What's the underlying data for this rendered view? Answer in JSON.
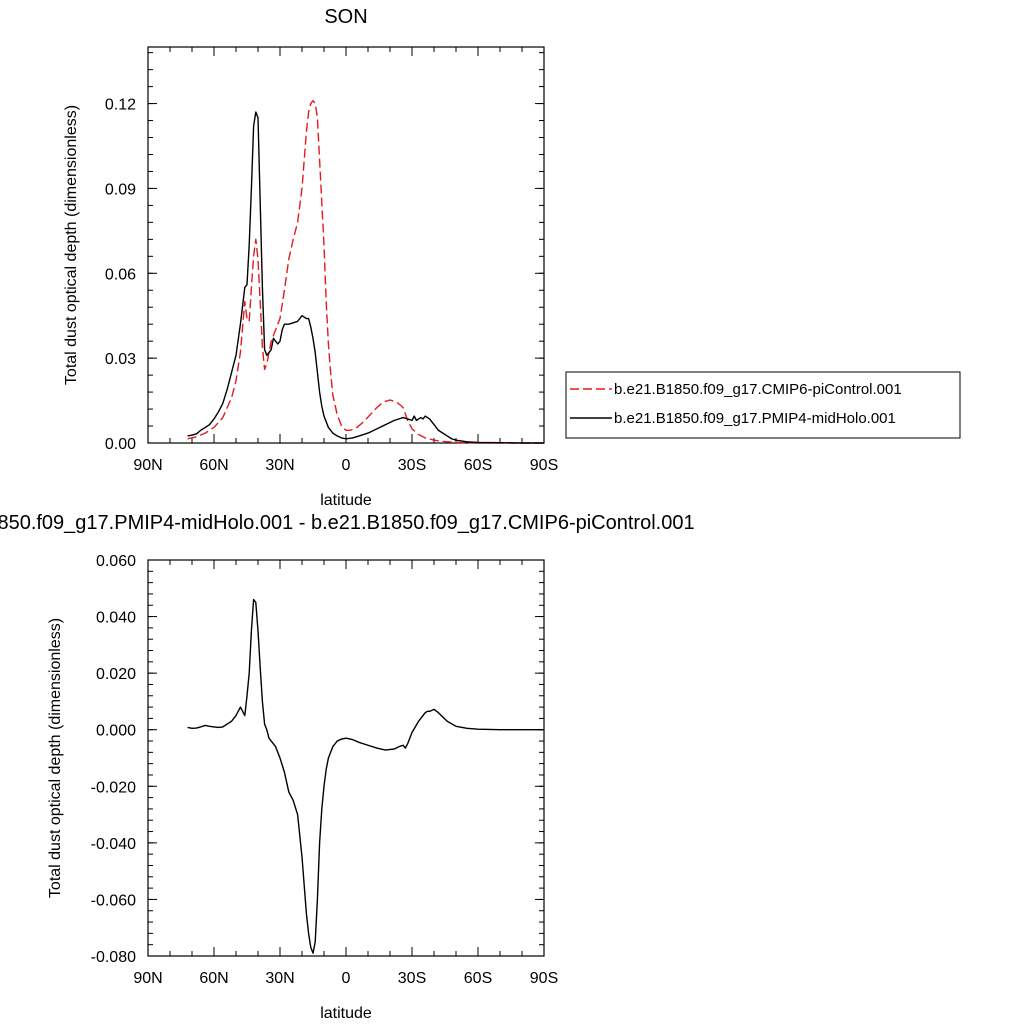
{
  "chart_data": [
    {
      "type": "line",
      "title": "SON",
      "xlabel": "latitude",
      "ylabel": "Total dust optical depth (dimensionless)",
      "xlim": [
        90,
        -90
      ],
      "ylim": [
        0,
        0.14
      ],
      "xticks": [
        90,
        60,
        30,
        0,
        -30,
        -60,
        -90
      ],
      "xtick_labels": [
        "90N",
        "60N",
        "30N",
        "0",
        "30S",
        "60S",
        "90S"
      ],
      "yticks": [
        0.0,
        0.03,
        0.06,
        0.09,
        0.12
      ],
      "ytick_labels": [
        "0.00",
        "0.03",
        "0.06",
        "0.09",
        "0.12"
      ],
      "legend_position": "right",
      "series": [
        {
          "name": "b.e21.B1850.f09_g17.CMIP6-piControl.001",
          "color": "#e41a1c",
          "style": "dashed",
          "x": [
            72,
            68,
            64,
            60,
            56,
            52,
            50,
            48,
            46,
            45,
            44,
            43,
            42,
            41,
            40,
            39,
            38,
            37,
            36,
            35,
            34,
            33,
            32,
            30,
            28,
            26,
            24,
            22,
            20,
            19,
            18,
            17,
            16,
            15,
            14,
            13,
            12,
            11,
            10,
            9,
            8,
            7,
            6,
            4,
            2,
            0,
            -2,
            -5,
            -8,
            -11,
            -14,
            -17,
            -20,
            -23,
            -26,
            -28,
            -30,
            -33,
            -36,
            -40,
            -45,
            -50,
            -55,
            -60,
            -70,
            -80,
            -90
          ],
          "y": [
            0.0015,
            0.0022,
            0.0035,
            0.0055,
            0.009,
            0.016,
            0.022,
            0.032,
            0.05,
            0.044,
            0.043,
            0.055,
            0.066,
            0.072,
            0.065,
            0.05,
            0.034,
            0.026,
            0.028,
            0.032,
            0.036,
            0.038,
            0.04,
            0.044,
            0.054,
            0.065,
            0.072,
            0.078,
            0.09,
            0.1,
            0.11,
            0.117,
            0.12,
            0.121,
            0.12,
            0.115,
            0.1,
            0.085,
            0.07,
            0.05,
            0.035,
            0.025,
            0.017,
            0.01,
            0.006,
            0.0045,
            0.0045,
            0.0055,
            0.0075,
            0.01,
            0.0125,
            0.0145,
            0.0152,
            0.0145,
            0.0125,
            0.008,
            0.005,
            0.003,
            0.0018,
            0.001,
            0.0005,
            0.0002,
            0.0001,
            0.0,
            0.0,
            0.0,
            0.0
          ]
        },
        {
          "name": "b.e21.B1850.f09_g17.PMIP4-midHolo.001",
          "color": "#000000",
          "style": "solid",
          "x": [
            72,
            70,
            68,
            66,
            64,
            62,
            60,
            58,
            56,
            54,
            52,
            50,
            48,
            46,
            45,
            44,
            43,
            42,
            41,
            40,
            39,
            38,
            37,
            36,
            35,
            34,
            33,
            32,
            31,
            30,
            29,
            28,
            26,
            24,
            22,
            20,
            18,
            17,
            16,
            15,
            14,
            13,
            12,
            11,
            10,
            8,
            6,
            4,
            2,
            0,
            -3,
            -6,
            -10,
            -14,
            -18,
            -22,
            -26,
            -28,
            -30,
            -31,
            -32,
            -33,
            -34,
            -35,
            -36,
            -37,
            -38,
            -40,
            -42,
            -44,
            -46,
            -48,
            -50,
            -55,
            -60,
            -70,
            -80,
            -90
          ],
          "y": [
            0.0025,
            0.0028,
            0.0032,
            0.0045,
            0.0055,
            0.0065,
            0.0085,
            0.011,
            0.014,
            0.019,
            0.025,
            0.031,
            0.042,
            0.055,
            0.056,
            0.07,
            0.09,
            0.112,
            0.117,
            0.115,
            0.085,
            0.055,
            0.033,
            0.031,
            0.032,
            0.033,
            0.037,
            0.036,
            0.035,
            0.036,
            0.04,
            0.042,
            0.042,
            0.0425,
            0.043,
            0.045,
            0.044,
            0.044,
            0.041,
            0.037,
            0.032,
            0.025,
            0.018,
            0.013,
            0.0095,
            0.0055,
            0.0035,
            0.0025,
            0.0018,
            0.0015,
            0.0018,
            0.0025,
            0.0035,
            0.005,
            0.0065,
            0.008,
            0.009,
            0.0085,
            0.008,
            0.0095,
            0.008,
            0.0085,
            0.009,
            0.0085,
            0.0095,
            0.009,
            0.0085,
            0.0065,
            0.0045,
            0.0035,
            0.0025,
            0.0015,
            0.001,
            0.0004,
            0.0002,
            0.0001,
            0.0,
            0.0
          ]
        }
      ]
    },
    {
      "type": "line",
      "title": "850.f09_g17.PMIP4-midHolo.001 - b.e21.B1850.f09_g17.CMIP6-piControl.001",
      "xlabel": "latitude",
      "ylabel": "Total dust optical depth (dimensionless)",
      "xlim": [
        90,
        -90
      ],
      "ylim": [
        -0.08,
        0.06
      ],
      "xticks": [
        90,
        60,
        30,
        0,
        -30,
        -60,
        -90
      ],
      "xtick_labels": [
        "90N",
        "60N",
        "30N",
        "0",
        "30S",
        "60S",
        "90S"
      ],
      "yticks": [
        -0.08,
        -0.06,
        -0.04,
        -0.02,
        0.0,
        0.02,
        0.04,
        0.06
      ],
      "ytick_labels": [
        "-0.080",
        "-0.060",
        "-0.040",
        "-0.020",
        "0.000",
        "0.020",
        "0.040",
        "0.060"
      ],
      "series": [
        {
          "color": "#000000",
          "style": "solid",
          "x": [
            72,
            70,
            68,
            66,
            64,
            62,
            60,
            58,
            56,
            54,
            52,
            50,
            48,
            46,
            45,
            44,
            43,
            42,
            41,
            40,
            39,
            38,
            37,
            36,
            35,
            34,
            33,
            32,
            31,
            30,
            28,
            26,
            24,
            22,
            20,
            18,
            17,
            16,
            15,
            14,
            13,
            12,
            11,
            10,
            9,
            8,
            6,
            4,
            2,
            0,
            -3,
            -6,
            -10,
            -14,
            -18,
            -22,
            -24,
            -26,
            -27,
            -28,
            -30,
            -33,
            -35,
            -36,
            -37,
            -38,
            -40,
            -42,
            -44,
            -46,
            -50,
            -55,
            -60,
            -70,
            -80,
            -90
          ],
          "y": [
            0.0008,
            0.0005,
            0.0006,
            0.001,
            0.0015,
            0.0012,
            0.001,
            0.0008,
            0.001,
            0.002,
            0.003,
            0.005,
            0.008,
            0.005,
            0.012,
            0.02,
            0.035,
            0.046,
            0.045,
            0.035,
            0.022,
            0.01,
            0.002,
            0.0,
            -0.003,
            -0.004,
            -0.005,
            -0.006,
            -0.008,
            -0.01,
            -0.015,
            -0.022,
            -0.025,
            -0.03,
            -0.045,
            -0.065,
            -0.072,
            -0.077,
            -0.079,
            -0.075,
            -0.06,
            -0.04,
            -0.028,
            -0.02,
            -0.014,
            -0.01,
            -0.006,
            -0.004,
            -0.0033,
            -0.003,
            -0.0035,
            -0.0045,
            -0.0055,
            -0.0065,
            -0.0072,
            -0.0068,
            -0.006,
            -0.0055,
            -0.0065,
            -0.005,
            -0.001,
            0.003,
            0.005,
            0.006,
            0.0065,
            0.0065,
            0.0072,
            0.006,
            0.0045,
            0.003,
            0.0012,
            0.0005,
            0.0002,
            0.0,
            0.0,
            0.0
          ]
        }
      ]
    }
  ]
}
